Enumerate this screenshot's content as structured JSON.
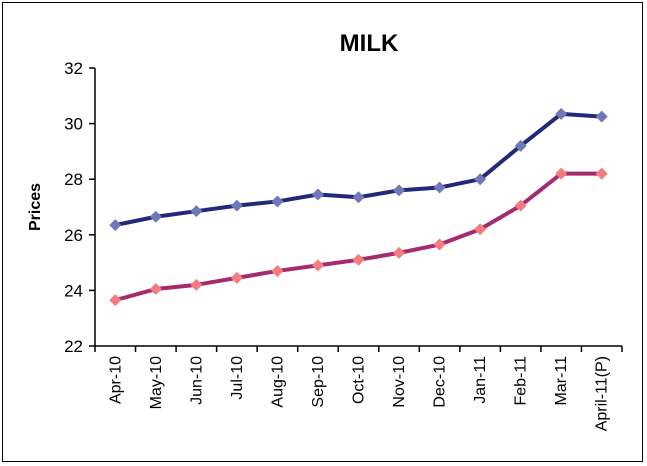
{
  "chart_data": {
    "type": "line",
    "title": "MILK",
    "xlabel": "",
    "ylabel": "Prices",
    "ylim": [
      22,
      32
    ],
    "yticks": [
      "22",
      "24",
      "26",
      "28",
      "30",
      "32"
    ],
    "categories": [
      "Apr-10",
      "May-10",
      "Jun-10",
      "Jul-10",
      "Aug-10",
      "Sep-10",
      "Oct-10",
      "Nov-10",
      "Dec-10",
      "Jan-11",
      "Feb-11",
      "Mar-11",
      "April-11(P)"
    ],
    "series": [
      {
        "color": "#22287a",
        "marker_color": "#6f78b8",
        "values": [
          26.35,
          26.65,
          26.85,
          27.05,
          27.2,
          27.45,
          27.35,
          27.6,
          27.7,
          28.0,
          29.2,
          30.35,
          30.25
        ]
      },
      {
        "color": "#a52a6e",
        "marker_color": "#f47c7c",
        "values": [
          23.65,
          24.05,
          24.2,
          24.45,
          24.7,
          24.9,
          25.1,
          25.35,
          25.65,
          26.2,
          27.05,
          28.2,
          28.2
        ]
      }
    ],
    "grid": false,
    "legend": "none"
  }
}
